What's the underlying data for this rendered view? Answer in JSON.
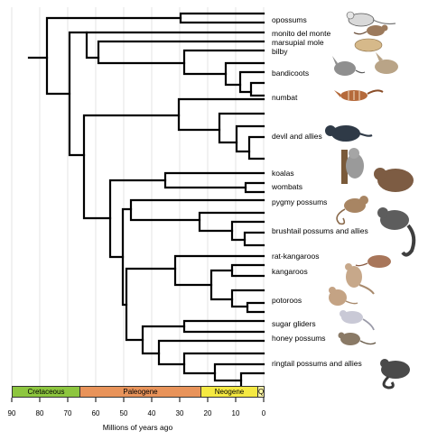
{
  "taxa": [
    {
      "id": "opossums",
      "label": "opossums"
    },
    {
      "id": "monito",
      "label": "monito del monte"
    },
    {
      "id": "marsupial-mole",
      "label": "marsupial mole"
    },
    {
      "id": "bilby",
      "label": "bilby"
    },
    {
      "id": "bandicoots",
      "label": "bandicoots"
    },
    {
      "id": "numbat",
      "label": "numbat"
    },
    {
      "id": "devil",
      "label": "devil and allies"
    },
    {
      "id": "koalas",
      "label": "koalas"
    },
    {
      "id": "wombats",
      "label": "wombats"
    },
    {
      "id": "pygmy",
      "label": "pygmy possums"
    },
    {
      "id": "brushtail",
      "label": "brushtail possums and allies"
    },
    {
      "id": "rat-kangaroos",
      "label": "rat-kangaroos"
    },
    {
      "id": "kangaroos",
      "label": "kangaroos"
    },
    {
      "id": "potoroos",
      "label": "potoroos"
    },
    {
      "id": "sugar",
      "label": "sugar gliders"
    },
    {
      "id": "honey",
      "label": "honey possums"
    },
    {
      "id": "ringtail",
      "label": "ringtail possums and allies"
    }
  ],
  "time_axis": {
    "title": "Millions of years ago",
    "ticks": [
      "90",
      "80",
      "70",
      "60",
      "50",
      "40",
      "30",
      "20",
      "10",
      "0"
    ]
  },
  "eras": [
    {
      "id": "cretaceous",
      "label": "Cretaceous",
      "color": "#8dc63f"
    },
    {
      "id": "paleogene",
      "label": "Paleogene",
      "color": "#e8935a"
    },
    {
      "id": "neogene",
      "label": "Neogene",
      "color": "#f5e942"
    },
    {
      "id": "quaternary",
      "label": "Q",
      "color": "#fff7a8"
    }
  ],
  "tree_color": "#000000",
  "grid_color": "#dddddd"
}
